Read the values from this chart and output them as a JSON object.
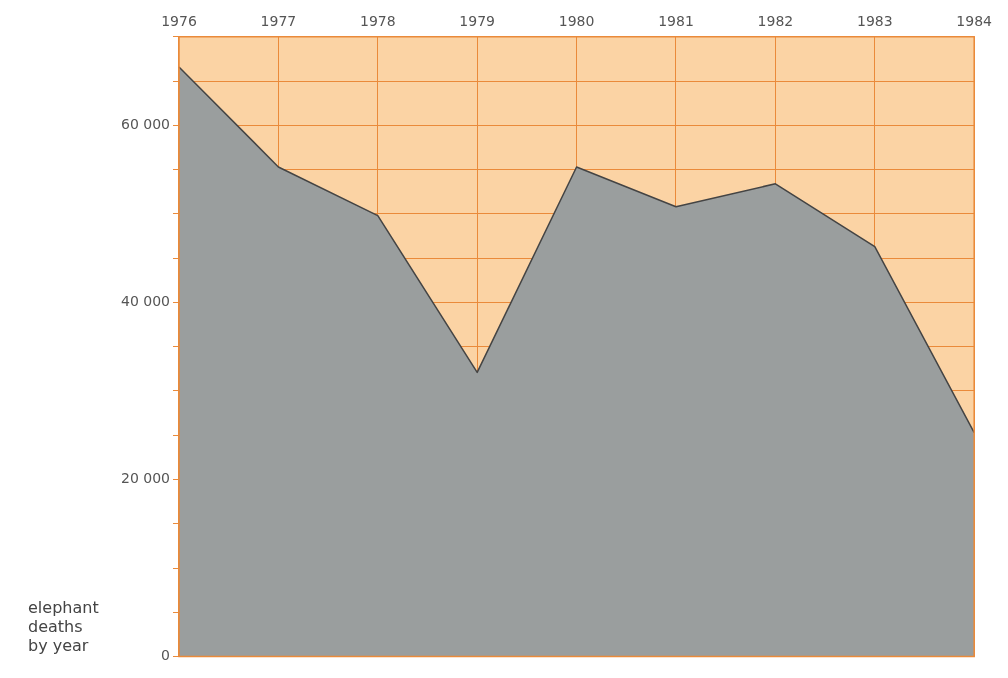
{
  "chart_data": {
    "type": "area",
    "ylabel": "elephant deaths by year",
    "categories": [
      "1976",
      "1977",
      "1978",
      "1979",
      "1980",
      "1981",
      "1982",
      "1983",
      "1984"
    ],
    "series": [
      {
        "color": "#9a9e9e",
        "values": [
          66600,
          55300,
          49800,
          32100,
          55300,
          50800,
          53400,
          46300,
          25300
        ]
      }
    ],
    "ylim": [
      0,
      70000
    ],
    "yticks": [
      {
        "value": 0,
        "label": "0"
      },
      {
        "value": 5000,
        "label": null
      },
      {
        "value": 10000,
        "label": null
      },
      {
        "value": 15000,
        "label": null
      },
      {
        "value": 20000,
        "label": "20 000"
      },
      {
        "value": 25000,
        "label": null
      },
      {
        "value": 30000,
        "label": null
      },
      {
        "value": 35000,
        "label": null
      },
      {
        "value": 40000,
        "label": "40 000"
      },
      {
        "value": 45000,
        "label": null
      },
      {
        "value": 50000,
        "label": null
      },
      {
        "value": 55000,
        "label": null
      },
      {
        "value": 60000,
        "label": "60 000"
      },
      {
        "value": 65000,
        "label": null
      },
      {
        "value": 70000,
        "label": null
      }
    ],
    "bands": [
      {
        "axis": "y",
        "from": 0,
        "to": 70000,
        "color": "#fbd3a4"
      }
    ],
    "grid": true,
    "legend": false
  }
}
